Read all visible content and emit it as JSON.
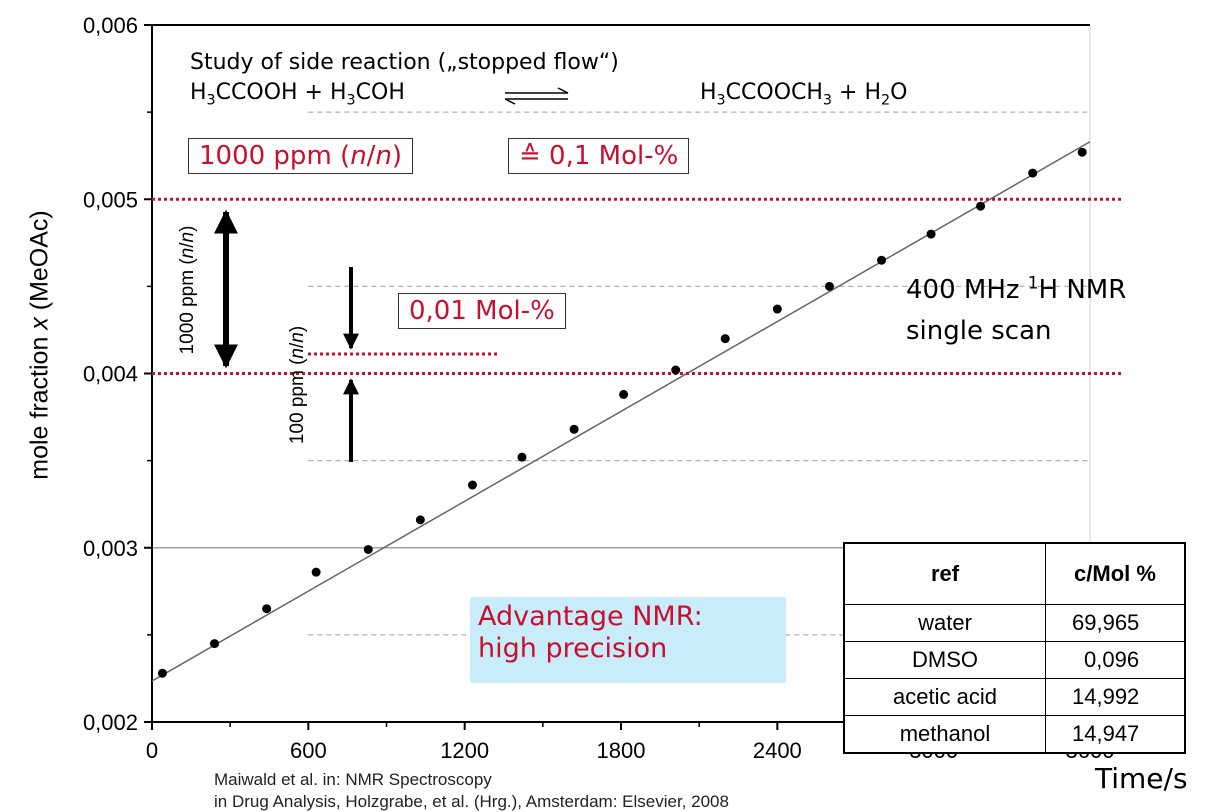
{
  "chart_data": {
    "type": "scatter",
    "title": "",
    "xlabel": "Time/s",
    "ylabel_prefix": "mole fraction ",
    "ylabel_var": "x",
    "ylabel_suffix": " (MeOAc)",
    "xlim": [
      0,
      3600
    ],
    "ylim": [
      0.002,
      0.006
    ],
    "x_ticks": [
      0,
      600,
      1200,
      1800,
      2400,
      3000,
      3600
    ],
    "x_tick_labels": [
      "0",
      "600",
      "1200",
      "1800",
      "2400",
      "3000",
      "3600"
    ],
    "y_ticks": [
      0.002,
      0.003,
      0.004,
      0.005,
      0.006
    ],
    "y_tick_labels": [
      "0,002",
      "0,003",
      "0,004",
      "0,005",
      "0,006"
    ],
    "y_dashed_gridlines": [
      0.0025,
      0.0035,
      0.0045,
      0.0055
    ],
    "y_solid_gridlines": [
      0.003
    ],
    "y_red_dotted_lines": [
      0.004,
      0.005
    ],
    "points": [
      {
        "x": 40,
        "y": 0.00228
      },
      {
        "x": 240,
        "y": 0.00245
      },
      {
        "x": 440,
        "y": 0.00265
      },
      {
        "x": 630,
        "y": 0.00286
      },
      {
        "x": 830,
        "y": 0.00299
      },
      {
        "x": 1030,
        "y": 0.00316
      },
      {
        "x": 1230,
        "y": 0.00336
      },
      {
        "x": 1420,
        "y": 0.00352
      },
      {
        "x": 1620,
        "y": 0.00368
      },
      {
        "x": 1810,
        "y": 0.00388
      },
      {
        "x": 2010,
        "y": 0.00402
      },
      {
        "x": 2200,
        "y": 0.0042
      },
      {
        "x": 2400,
        "y": 0.00437
      },
      {
        "x": 2600,
        "y": 0.0045
      },
      {
        "x": 2800,
        "y": 0.00465
      },
      {
        "x": 2990,
        "y": 0.0048
      },
      {
        "x": 3180,
        "y": 0.00496
      },
      {
        "x": 3380,
        "y": 0.00515
      },
      {
        "x": 3570,
        "y": 0.00527
      }
    ],
    "fit_line": {
      "x": [
        0,
        3600
      ],
      "y": [
        0.002235,
        0.00533
      ]
    }
  },
  "annotations": {
    "study_line": "Study of side reaction („stopped flow“)",
    "reaction_lhs": "H<sub>3</sub>CCOOH + H<sub>3</sub>COH",
    "reaction_rhs": "H<sub>3</sub>CCOOCH<sub>3</sub> + H<sub>2</sub>O",
    "ppm_box": "1000 ppm (<i>n</i>/<i>n</i>)",
    "mol_box": "≙ 0,1 Mol-%",
    "small_mol_box": "0,01 Mol-%",
    "ppm_1000_vertical": "1000 ppm (<i>n</i>/<i>n</i>)",
    "ppm_100_vertical": "100 ppm (<i>n</i>/<i>n</i>)",
    "nmr_line1": "400 MHz <sup>1</sup>H NMR",
    "nmr_line2": "single scan",
    "advantage_line1": "Advantage NMR:",
    "advantage_line2": "high precision",
    "citation_line1": "Maiwald et al. in: NMR Spectroscopy",
    "citation_line2": "in Drug Analysis, Holzgrabe, et al. (Hrg.), Amsterdam: Elsevier, 2008"
  },
  "ref_table": {
    "headers": [
      "ref",
      "c/Mol %"
    ],
    "rows": [
      [
        "water",
        "69,965"
      ],
      [
        "DMSO",
        "0,096"
      ],
      [
        "acetic acid",
        "14,992"
      ],
      [
        "methanol",
        "14,947"
      ]
    ]
  },
  "colors": {
    "accent_red": "#c8102e",
    "highlight_cyan": "#c8ecfa",
    "axis": "#000000",
    "grid_dashed": "#b0b0b0",
    "fit_line": "#666666"
  }
}
